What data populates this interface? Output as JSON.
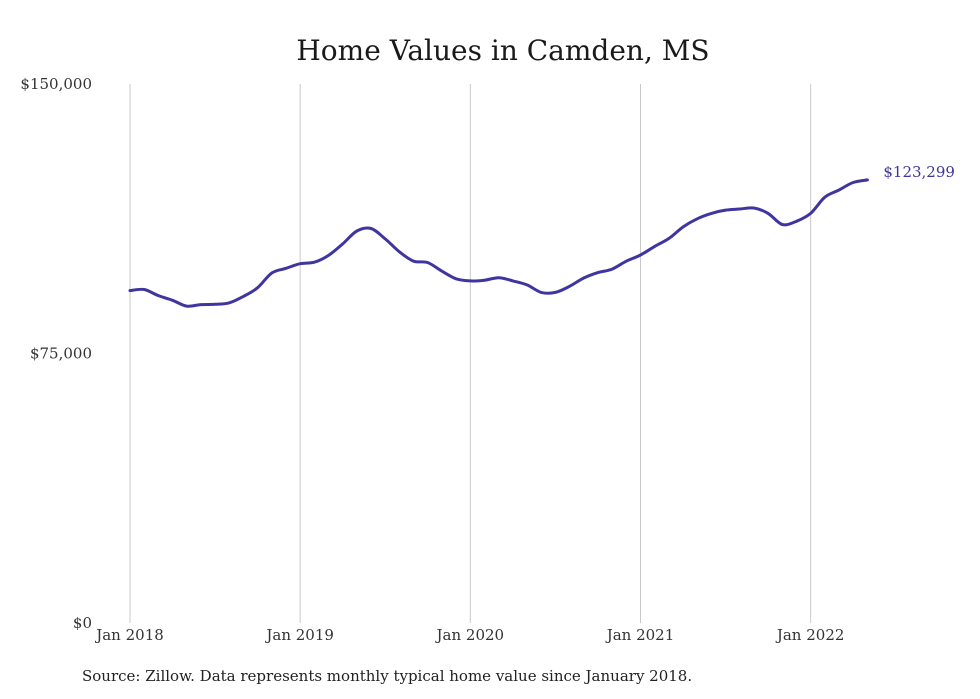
{
  "chart_data": {
    "type": "line",
    "title": "Home Values in Camden, MS",
    "xlabel": "",
    "ylabel": "",
    "x_ticks": [
      "Jan 2018",
      "Jan 2019",
      "Jan 2020",
      "Jan 2021",
      "Jan 2022"
    ],
    "y_ticks": [
      "$0",
      "$75,000",
      "$150,000"
    ],
    "y_tick_values": [
      0,
      75000,
      150000
    ],
    "ylim": [
      0,
      150000
    ],
    "x_start": "2018-01",
    "grid": "vertical",
    "legend": "none",
    "series": [
      {
        "color": "#3f35a0",
        "end_label": "$123,299",
        "x": [
          "2018-01",
          "2018-02",
          "2018-03",
          "2018-04",
          "2018-05",
          "2018-06",
          "2018-07",
          "2018-08",
          "2018-09",
          "2018-10",
          "2018-11",
          "2018-12",
          "2019-01",
          "2019-02",
          "2019-03",
          "2019-04",
          "2019-05",
          "2019-06",
          "2019-07",
          "2019-08",
          "2019-09",
          "2019-10",
          "2019-11",
          "2019-12",
          "2020-01",
          "2020-02",
          "2020-03",
          "2020-04",
          "2020-05",
          "2020-06",
          "2020-07",
          "2020-08",
          "2020-09",
          "2020-10",
          "2020-11",
          "2020-12",
          "2021-01",
          "2021-02",
          "2021-03",
          "2021-04",
          "2021-05",
          "2021-06",
          "2021-07",
          "2021-08",
          "2021-09",
          "2021-10",
          "2021-11",
          "2021-12",
          "2022-01",
          "2022-02",
          "2022-03",
          "2022-04",
          "2022-05"
        ],
        "values": [
          92500,
          92800,
          91100,
          89800,
          88200,
          88600,
          88700,
          89100,
          90900,
          93300,
          97400,
          98700,
          100000,
          100400,
          102300,
          105500,
          109100,
          109800,
          106900,
          103300,
          100700,
          100300,
          97900,
          95800,
          95200,
          95400,
          96100,
          95200,
          94100,
          92000,
          92000,
          93700,
          96000,
          97500,
          98500,
          100700,
          102400,
          104800,
          107000,
          110200,
          112500,
          114000,
          114900,
          115200,
          115500,
          114000,
          110900,
          111800,
          114000,
          118500,
          120500,
          122600,
          123299
        ]
      }
    ]
  },
  "source_note": "Source: Zillow. Data represents monthly typical home value since January 2018."
}
